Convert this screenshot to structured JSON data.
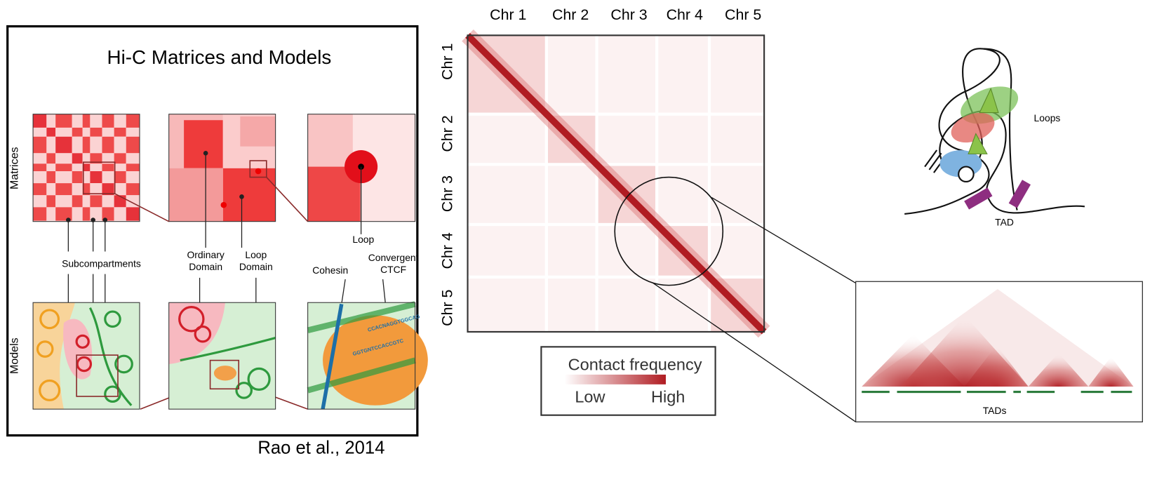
{
  "left_panel": {
    "title": "Hi-C Matrices and Models",
    "row_labels": [
      "Matrices",
      "Models"
    ],
    "annotations": {
      "subcompartments": "Subcompartments",
      "ordinary_domain": [
        "Ordinary",
        "Domain"
      ],
      "loop_domain": [
        "Loop",
        "Domain"
      ],
      "loop": "Loop",
      "cohesin": "Cohesin",
      "convergent_ctcf": [
        "Convergent",
        "CTCF"
      ],
      "motifs": [
        "CCACNAGGTGGCAG",
        "GGTGNTCCACCGTC"
      ]
    },
    "citation": "Rao et al., 2014"
  },
  "heatmap": {
    "chromosomes": [
      "Chr 1",
      "Chr 2",
      "Chr 3",
      "Chr 4",
      "Chr 5"
    ],
    "legend": {
      "title": "Contact frequency",
      "low": "Low",
      "high": "High"
    }
  },
  "loop_diagram": {
    "loops_label": "Loops",
    "tad_label": "TAD"
  },
  "tad_track": {
    "label": "TADs"
  }
}
